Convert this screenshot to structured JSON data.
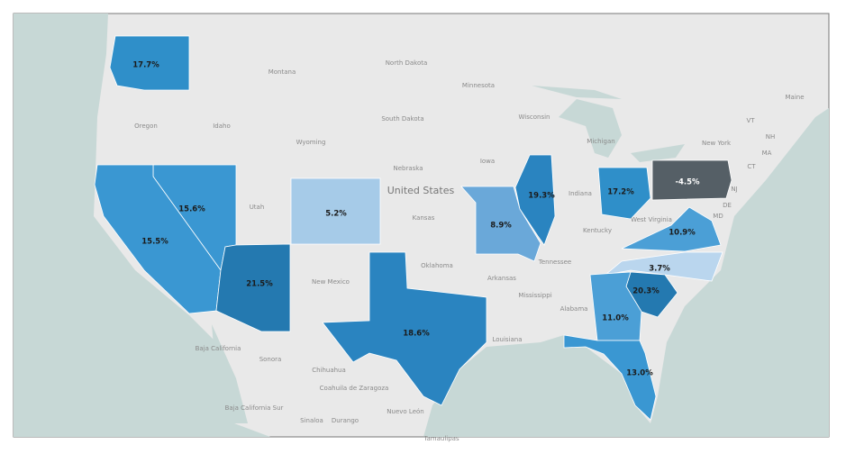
{
  "chart_data": {
    "type": "choropleth",
    "values": [
      17.7,
      15.6,
      15.5,
      21.5,
      5.2,
      18.6,
      8.9,
      19.3,
      17.2,
      -4.5,
      10.9,
      3.7,
      20.3,
      11.0,
      13.0
    ],
    "value_labels": [
      "17.7%",
      "15.6%",
      "15.5%",
      "21.5%",
      "5.2%",
      "18.6%",
      "8.9%",
      "19.3%",
      "17.2%",
      "-4.5%",
      "10.9%",
      "3.7%",
      "20.3%",
      "11.0%",
      "13.0%"
    ],
    "colors": [
      "#2f8fc9",
      "#3a97d2",
      "#3a97d2",
      "#2479b0",
      "#a6cbe8",
      "#2a84c0",
      "#6aa8d9",
      "#2a84c0",
      "#2f8fc9",
      "#555f66",
      "#4b9fd6",
      "#bad6ee",
      "#2479b0",
      "#4b9fd6",
      "#3a97d2"
    ],
    "basemap_labels": [
      "Montana",
      "North Dakota",
      "Minnesota",
      "Oregon",
      "Idaho",
      "South Dakota",
      "Wisconsin",
      "Wyoming",
      "Michigan",
      "Nebraska",
      "Iowa",
      "Utah",
      "Kansas",
      "Indiana",
      "Kentucky",
      "New Mexico",
      "Oklahoma",
      "Arkansas",
      "Tennessee",
      "Mississippi",
      "Alabama",
      "Louisiana",
      "New York",
      "West Virginia",
      "Sonora",
      "Chihuahua",
      "Coahuila de Zaragoza",
      "Nuevo León",
      "Sinaloa",
      "Durango",
      "Tamaulipas",
      "Baja California",
      "Baja California Sur",
      "VT",
      "NH",
      "MA",
      "CT",
      "NJ",
      "DE",
      "MD",
      "Maine"
    ],
    "country_label": "United States"
  }
}
